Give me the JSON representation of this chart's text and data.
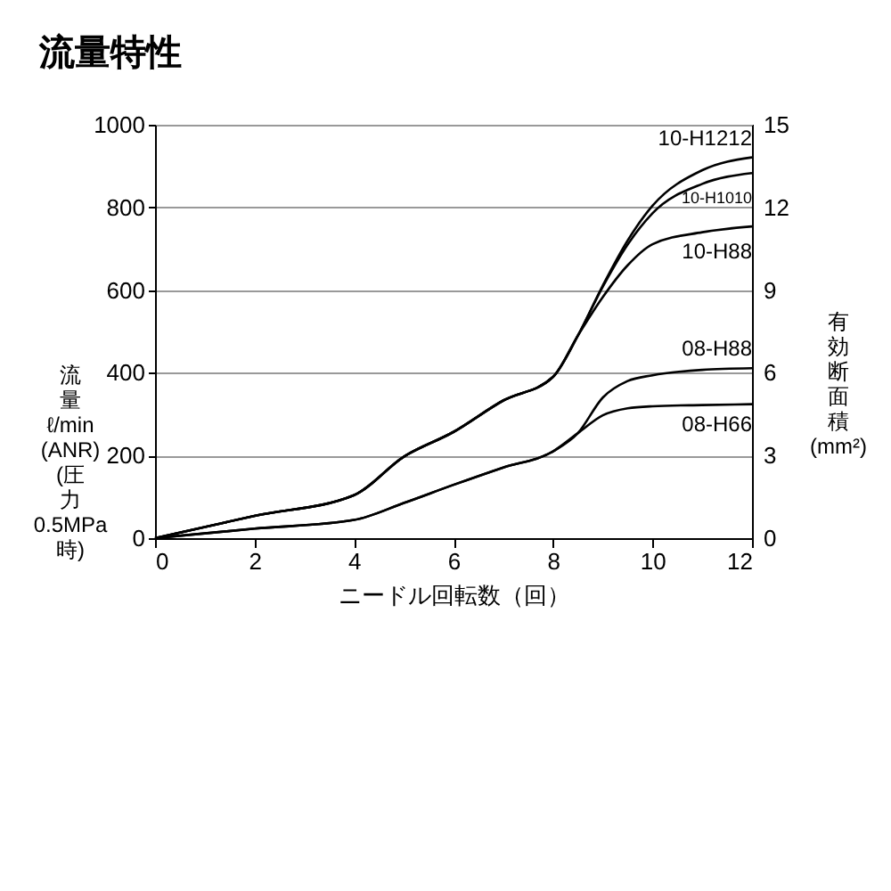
{
  "chart_data": {
    "type": "line",
    "title": "流量特性",
    "xlabel": "ニードル回転数（回）",
    "ylabel": "流量 ℓ/min (ANR) (圧力 0.5MPa 時)",
    "y2label": "有効断面積 (mm²)",
    "xlim": [
      0,
      12
    ],
    "xticks": [
      0,
      2,
      4,
      6,
      8,
      10,
      12
    ],
    "ylim": [
      0,
      1000
    ],
    "yticks": [
      0,
      200,
      400,
      600,
      800,
      1000
    ],
    "y2lim": [
      0,
      15
    ],
    "y2ticks": [
      0,
      3,
      6,
      9,
      12,
      15
    ],
    "grid": "y",
    "legend": false,
    "marker": "none",
    "line_style": "solid",
    "series": [
      {
        "name": "10-H1212",
        "color": "#000000",
        "x": [
          0,
          1,
          2,
          4,
          5,
          6,
          7,
          8,
          8.5,
          9,
          9.5,
          10,
          11,
          12
        ],
        "values": [
          0,
          27,
          54,
          104,
          197,
          257,
          333,
          390,
          490,
          611,
          720,
          804,
          890,
          921
        ]
      },
      {
        "name": "10-H1010",
        "color": "#000000",
        "x": [
          0,
          1,
          2,
          4,
          5,
          6,
          7,
          8,
          8.5,
          9,
          9.5,
          10,
          11,
          12
        ],
        "values": [
          0,
          27,
          54,
          104,
          197,
          257,
          333,
          390,
          490,
          608,
          710,
          786,
          857,
          883
        ]
      },
      {
        "name": "10-H88",
        "color": "#000000",
        "x": [
          0,
          1,
          2,
          4,
          5,
          6,
          7,
          8,
          8.5,
          9,
          9.5,
          10,
          11,
          12
        ],
        "values": [
          0,
          27,
          54,
          104,
          197,
          257,
          333,
          390,
          490,
          583,
          660,
          711,
          740,
          754
        ]
      },
      {
        "name": "08-H88",
        "color": "#000000",
        "x": [
          0,
          2,
          4,
          5,
          6,
          7,
          8,
          8.5,
          9,
          9.5,
          10,
          11,
          12
        ],
        "values": [
          0,
          23,
          44,
          85,
          129,
          171,
          210,
          254,
          340,
          380,
          394,
          407,
          411
        ]
      },
      {
        "name": "08-H66",
        "color": "#000000",
        "x": [
          0,
          2,
          4,
          5,
          6,
          7,
          8,
          8.5,
          9,
          9.5,
          10,
          11,
          12
        ],
        "values": [
          0,
          23,
          44,
          85,
          129,
          171,
          210,
          254,
          297,
          314,
          319,
          322,
          324
        ]
      }
    ]
  }
}
